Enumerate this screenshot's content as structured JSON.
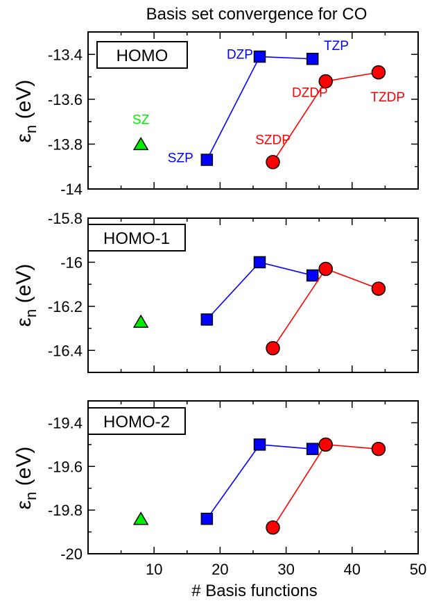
{
  "chart_data": {
    "type": "scatter",
    "title": "Basis set convergence for CO",
    "xlabel": "# Basis functions",
    "ylabel_main": "ε",
    "ylabel_sub": "n",
    "ylabel_unit": " (eV)",
    "xlim": [
      0,
      50
    ],
    "x_ticks": [
      10,
      20,
      30,
      40,
      50
    ],
    "x_tick_labels": [
      "10",
      "20",
      "30",
      "40",
      "50"
    ],
    "colors": {
      "sz": "#00ee00",
      "single": "#0000ff",
      "double": "#ff0000",
      "axis": "#000000"
    },
    "panels": [
      {
        "label": "HOMO",
        "ylim": [
          -14.0,
          -13.3
        ],
        "y_ticks": [
          -13.4,
          -13.6,
          -13.8,
          -14.0
        ],
        "y_tick_labels": [
          "-13.4",
          "-13.6",
          "-13.8",
          "-14"
        ],
        "series": [
          {
            "name": "SZ",
            "marker": "triangle",
            "color": "#00ee00",
            "x": [
              8
            ],
            "y": [
              -13.8
            ]
          },
          {
            "name": "SZP-DZP-TZP",
            "marker": "square",
            "color": "#0000ff",
            "x": [
              18,
              26,
              34
            ],
            "y": [
              -13.87,
              -13.41,
              -13.42
            ]
          },
          {
            "name": "SZDP-DZDP-TZDP",
            "marker": "circle",
            "color": "#ff0000",
            "x": [
              28,
              36,
              44
            ],
            "y": [
              -13.88,
              -13.52,
              -13.48
            ]
          }
        ],
        "annotations": [
          {
            "text": "SZ",
            "color": "#00ee00",
            "x": 8,
            "y": -13.71
          },
          {
            "text": "SZP",
            "color": "#0000ff",
            "x": 14,
            "y": -13.88
          },
          {
            "text": "DZP",
            "color": "#0000ff",
            "x": 23,
            "y": -13.42
          },
          {
            "text": "TZP",
            "color": "#0000ff",
            "x": 37.6,
            "y": -13.38
          },
          {
            "text": "SZDP",
            "color": "#ff0000",
            "x": 28,
            "y": -13.8
          },
          {
            "text": "DZDP",
            "color": "#ff0000",
            "x": 33.6,
            "y": -13.59
          },
          {
            "text": "TZDP",
            "color": "#ff0000",
            "x": 45.4,
            "y": -13.61
          }
        ]
      },
      {
        "label": "HOMO-1",
        "ylim": [
          -16.5,
          -15.8
        ],
        "y_ticks": [
          -15.8,
          -16.0,
          -16.2,
          -16.4
        ],
        "y_tick_labels": [
          "-15.8",
          "-16",
          "-16.2",
          "-16.4"
        ],
        "series": [
          {
            "name": "SZ",
            "marker": "triangle",
            "color": "#00ee00",
            "x": [
              8
            ],
            "y": [
              -16.27
            ]
          },
          {
            "name": "SZP-DZP-TZP",
            "marker": "square",
            "color": "#0000ff",
            "x": [
              18,
              26,
              34
            ],
            "y": [
              -16.26,
              -16.0,
              -16.06
            ]
          },
          {
            "name": "SZDP-DZDP-TZDP",
            "marker": "circle",
            "color": "#ff0000",
            "x": [
              28,
              36,
              44
            ],
            "y": [
              -16.39,
              -16.03,
              -16.12
            ]
          }
        ],
        "annotations": []
      },
      {
        "label": "HOMO-2",
        "ylim": [
          -20.0,
          -19.3
        ],
        "y_ticks": [
          -19.4,
          -19.6,
          -19.8,
          -20.0
        ],
        "y_tick_labels": [
          "-19.4",
          "-19.6",
          "-19.8",
          "-20"
        ],
        "series": [
          {
            "name": "SZ",
            "marker": "triangle",
            "color": "#00ee00",
            "x": [
              8
            ],
            "y": [
              -19.84
            ]
          },
          {
            "name": "SZP-DZP-TZP",
            "marker": "square",
            "color": "#0000ff",
            "x": [
              18,
              26,
              34
            ],
            "y": [
              -19.84,
              -19.5,
              -19.52
            ]
          },
          {
            "name": "SZDP-DZDP-TZDP",
            "marker": "circle",
            "color": "#ff0000",
            "x": [
              28,
              36,
              44
            ],
            "y": [
              -19.88,
              -19.5,
              -19.52
            ]
          }
        ],
        "annotations": []
      }
    ]
  }
}
